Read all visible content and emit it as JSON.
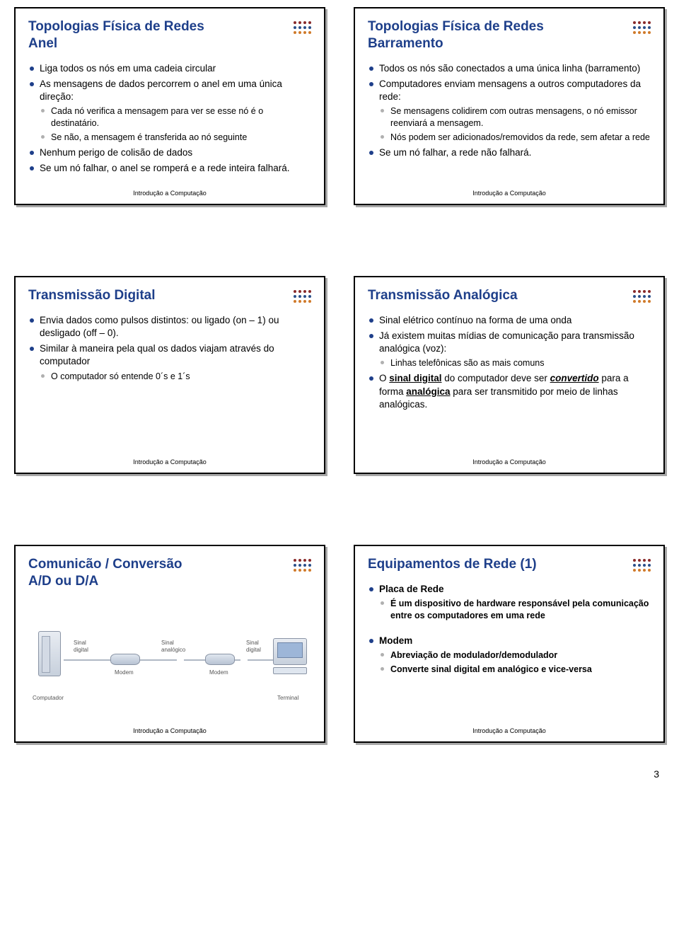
{
  "footer_text": "Introdução a Computação",
  "page_number": "3",
  "dot_colors_row1": [
    "#8a2a2a",
    "#8a2a2a",
    "#8a2a2a",
    "#8a2a2a"
  ],
  "dot_colors_row2": [
    "#2a4f8a",
    "#2a4f8a",
    "#2a4f8a",
    "#2a4f8a"
  ],
  "dot_colors_row3": [
    "#d07a2a",
    "#d07a2a",
    "#d07a2a",
    "#d07a2a"
  ],
  "slides": [
    {
      "title": "Topologias Física de Redes\nAnel",
      "bullets": [
        {
          "t": "Liga todos os nós em uma cadeia circular"
        },
        {
          "t": "As mensagens de dados percorrem o anel em uma única direção:",
          "sub": [
            {
              "t": "Cada nó verifica a mensagem para ver se esse nó é o destinatário."
            },
            {
              "t": "Se não, a mensagem é transferida ao nó seguinte"
            }
          ]
        },
        {
          "t": "Nenhum perigo de colisão de dados"
        },
        {
          "t": "Se um nó falhar, o anel se romperá e a rede inteira falhará."
        }
      ]
    },
    {
      "title": "Topologias Física de Redes\nBarramento",
      "bullets": [
        {
          "t": "Todos os nós são conectados a uma única linha (barramento)"
        },
        {
          "t": "Computadores enviam mensagens a outros computadores da rede:",
          "sub": [
            {
              "t": "Se mensagens colidirem com outras mensagens, o nó emissor reenviará a mensagem."
            },
            {
              "t": "Nós podem ser adicionados/removidos da rede, sem afetar a rede"
            }
          ]
        },
        {
          "t": "Se um nó falhar, a rede não falhará."
        }
      ]
    },
    {
      "title": "Transmissão Digital",
      "bullets": [
        {
          "t": "Envia dados como pulsos distintos: ou ligado (on – 1) ou desligado (off – 0)."
        },
        {
          "t": "Similar à maneira pela qual os dados viajam através do computador",
          "sub": [
            {
              "t": "O computador só entende 0´s e 1´s"
            }
          ]
        }
      ]
    },
    {
      "title": "Transmissão Analógica",
      "bullets": [
        {
          "t": "Sinal elétrico contínuo na forma de uma onda"
        },
        {
          "t": "Já existem muitas mídias de comunicação para transmissão analógica (voz):",
          "sub": [
            {
              "t": "Linhas telefônicas são as mais comuns"
            }
          ]
        },
        {
          "html": "O <span class=\"ul-strong\">sinal digital</span> do computador deve ser <span class=\"ul-em\">convertido</span> para a forma <span class=\"ul-strong\">analógica</span> para ser transmitido por meio de linhas analógicas."
        }
      ]
    },
    {
      "title": "Comunicão / Conversão\nA/D ou D/A",
      "diagram": {
        "labels": {
          "sinal_digital_l": "Sinal\ndigital",
          "sinal_analogico": "Sinal\nanalógico",
          "sinal_digital_r": "Sinal\ndigital",
          "modem": "Modem",
          "computador": "Computador",
          "terminal": "Terminal"
        }
      }
    },
    {
      "title": "Equipamentos de Rede (1)",
      "bullets": [
        {
          "t": "Placa de Rede",
          "bold": true,
          "sub": [
            {
              "t": "É um dispositivo de hardware responsável pela comunicação entre os computadores em uma rede"
            }
          ]
        },
        {
          "spacer": true
        },
        {
          "t": "Modem",
          "bold": true,
          "sub": [
            {
              "t": "Abreviação de modulador/demodulador"
            },
            {
              "t": "Converte  sinal digital em analógico e vice-versa"
            }
          ]
        }
      ]
    }
  ]
}
